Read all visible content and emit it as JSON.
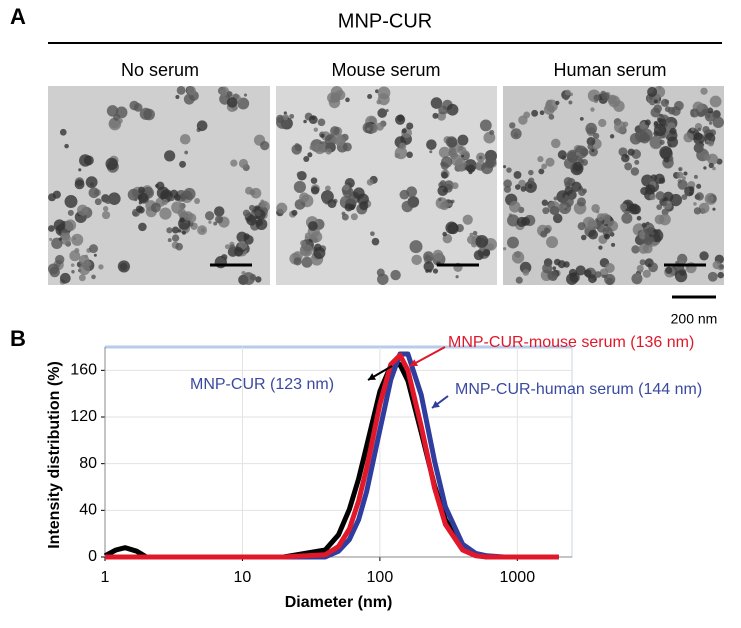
{
  "panel_a": {
    "label": "A",
    "title": "MNP-CUR",
    "images": [
      {
        "label": "No serum"
      },
      {
        "label": "Mouse serum"
      },
      {
        "label": "Human serum"
      }
    ],
    "scale_bar": "200 nm"
  },
  "chart_data": {
    "type": "line",
    "panel_label": "B",
    "xlabel": "Diameter (nm)",
    "ylabel": "Intensity distribution (%)",
    "log_x": true,
    "grid": true,
    "xlim": [
      1,
      2500
    ],
    "xticks": [
      1,
      10,
      100,
      1000
    ],
    "ylim": [
      0,
      180
    ],
    "yticks": [
      0,
      40,
      80,
      120,
      160
    ],
    "x": [
      1,
      1.2,
      1.4,
      1.7,
      2,
      5,
      10,
      20,
      40,
      50,
      60,
      70,
      80,
      100,
      120,
      140,
      160,
      200,
      250,
      300,
      400,
      500,
      600,
      800,
      1000,
      2000
    ],
    "series": [
      {
        "name": "MNP-CUR (123 nm)",
        "color": "#000000",
        "label_color": "#3a4aa0",
        "values": [
          1,
          6,
          8,
          5,
          0,
          0,
          0,
          0,
          6,
          19,
          41,
          67,
          95,
          142,
          164,
          165,
          151,
          107,
          61,
          32,
          8,
          2,
          0,
          0,
          0,
          0
        ]
      },
      {
        "name": "MNP-CUR-human serum (144 nm)",
        "color": "#2e3d9e",
        "label_color": "#3a4aa0",
        "values": [
          0,
          0,
          0,
          0,
          0,
          0,
          0,
          0,
          0,
          5,
          15,
          32,
          56,
          109,
          152,
          174,
          174,
          139,
          82,
          43,
          11,
          3,
          1,
          0,
          0,
          0
        ]
      },
      {
        "name": "MNP-CUR-mouse serum (136 nm)",
        "color": "#e0182a",
        "label_color": "#e0182a",
        "values": [
          0,
          0,
          0,
          0,
          0,
          0,
          0,
          0,
          2,
          9,
          24,
          48,
          76,
          131,
          165,
          173,
          160,
          112,
          59,
          28,
          6,
          1,
          0,
          0,
          0,
          0
        ]
      }
    ]
  }
}
